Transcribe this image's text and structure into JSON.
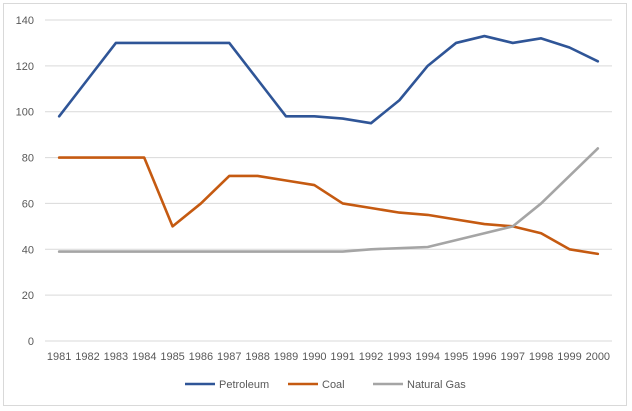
{
  "chart_data": {
    "type": "line",
    "title": "",
    "xlabel": "",
    "ylabel": "",
    "ylim": [
      0,
      140
    ],
    "yticks": [
      0,
      20,
      40,
      60,
      80,
      100,
      120,
      140
    ],
    "grid": true,
    "legend_position": "bottom",
    "categories": [
      "1981",
      "1982",
      "1983",
      "1984",
      "1985",
      "1986",
      "1987",
      "1988",
      "1989",
      "1990",
      "1991",
      "1992",
      "1993",
      "1994",
      "1995",
      "1996",
      "1997",
      "1998",
      "1999",
      "2000"
    ],
    "series": [
      {
        "name": "Petroleum",
        "color": "#2f5597",
        "values": [
          98,
          114,
          130,
          130,
          130,
          130,
          130,
          114,
          98,
          98,
          97,
          95,
          105,
          120,
          130,
          133,
          130,
          132,
          128,
          122
        ]
      },
      {
        "name": "Coal",
        "color": "#c55a11",
        "values": [
          80,
          80,
          80,
          80,
          50,
          60,
          72,
          72,
          70,
          68,
          60,
          58,
          56,
          55,
          53,
          51,
          50,
          47,
          40,
          38
        ]
      },
      {
        "name": "Natural Gas",
        "color": "#a5a5a5",
        "values": [
          39,
          39,
          39,
          39,
          39,
          39,
          39,
          39,
          39,
          39,
          39,
          40,
          40.5,
          41,
          44,
          47,
          50,
          60,
          72,
          84
        ]
      }
    ]
  }
}
